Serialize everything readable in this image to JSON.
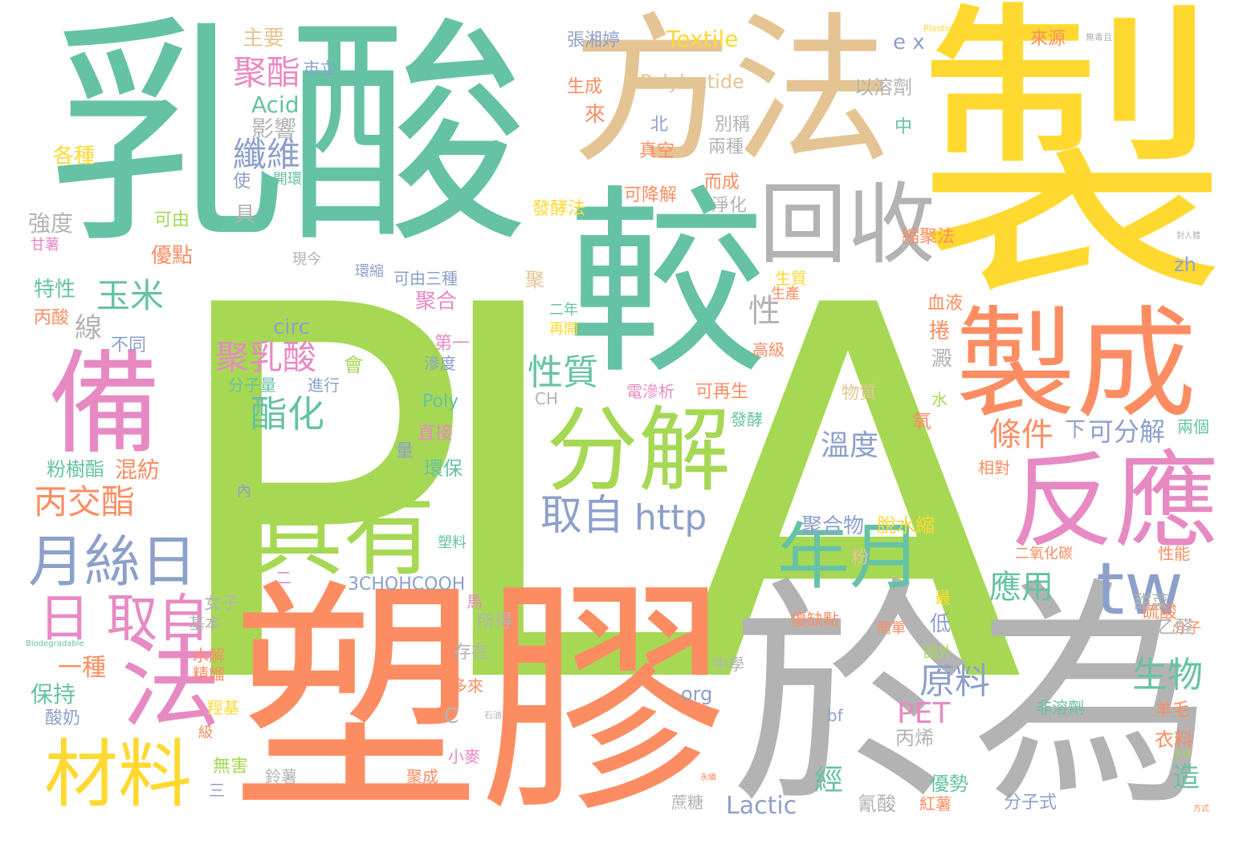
{
  "palette": {
    "green": "#a6d854",
    "teal": "#66c2a5",
    "yellow": "#ffd92f",
    "tan": "#e5c494",
    "orange": "#fc8d62",
    "gray": "#b3b3b3",
    "pink": "#e78ac3",
    "blue": "#8da0cb"
  },
  "words": [
    {
      "text": "PLA",
      "color": "green"
    },
    {
      "text": "乳酸",
      "color": "teal"
    },
    {
      "text": "製",
      "color": "yellow"
    },
    {
      "text": "方法",
      "color": "tan"
    },
    {
      "text": "較",
      "color": "teal"
    },
    {
      "text": "塑膠",
      "color": "orange"
    },
    {
      "text": "於為",
      "color": "gray"
    },
    {
      "text": "製成",
      "color": "orange"
    },
    {
      "text": "反應",
      "color": "pink"
    },
    {
      "text": "回收",
      "color": "gray"
    },
    {
      "text": "分解",
      "color": "green"
    },
    {
      "text": "具有",
      "color": "green"
    },
    {
      "text": "備",
      "color": "pink"
    },
    {
      "text": "法",
      "color": "pink"
    },
    {
      "text": "材料",
      "color": "yellow"
    },
    {
      "text": "年月",
      "color": "teal"
    },
    {
      "text": "tw",
      "color": "blue"
    },
    {
      "text": "月絲日",
      "color": "blue"
    },
    {
      "text": "日 取自",
      "color": "pink"
    },
    {
      "text": "取自",
      "color": "blue"
    },
    {
      "text": "http",
      "color": "blue"
    },
    {
      "text": "聚乳酸",
      "color": "pink"
    },
    {
      "text": "酯化",
      "color": "teal"
    },
    {
      "text": "性質",
      "color": "teal"
    },
    {
      "text": "原料",
      "color": "blue"
    },
    {
      "text": "生物",
      "color": "teal"
    },
    {
      "text": "丙交酯",
      "color": "orange"
    },
    {
      "text": "玉米",
      "color": "teal"
    },
    {
      "text": "聚酯",
      "color": "pink"
    },
    {
      "text": "纖維",
      "color": "blue"
    },
    {
      "text": "應用",
      "color": "teal"
    },
    {
      "text": "條件",
      "color": "orange"
    },
    {
      "text": "溫度",
      "color": "blue"
    },
    {
      "text": "可分解",
      "color": "blue"
    },
    {
      "text": "PET",
      "color": "pink"
    },
    {
      "text": "Textile",
      "color": "yellow"
    },
    {
      "text": "Polylactide",
      "color": "tan"
    },
    {
      "text": "Lactic",
      "color": "blue"
    },
    {
      "text": "Acid",
      "color": "teal"
    },
    {
      "text": "circ",
      "color": "blue"
    },
    {
      "text": "Poly",
      "color": "teal"
    },
    {
      "text": "3CHOHCOOH",
      "color": "blue"
    },
    {
      "text": "聚合物",
      "color": "blue"
    },
    {
      "text": "脫水縮",
      "color": "yellow"
    },
    {
      "text": "混紡",
      "color": "orange"
    },
    {
      "text": "粉樹酯",
      "color": "teal"
    },
    {
      "text": "一種",
      "color": "orange"
    },
    {
      "text": "保持",
      "color": "teal"
    },
    {
      "text": "酸奶",
      "color": "blue"
    },
    {
      "text": "特性",
      "color": "teal"
    },
    {
      "text": "丙酸",
      "color": "orange"
    },
    {
      "text": "強度",
      "color": "gray"
    },
    {
      "text": "各種",
      "color": "yellow"
    },
    {
      "text": "主要",
      "color": "tan"
    },
    {
      "text": "市立",
      "color": "blue"
    },
    {
      "text": "影響",
      "color": "gray"
    },
    {
      "text": "張湘婷",
      "color": "blue"
    },
    {
      "text": "來源",
      "color": "orange"
    },
    {
      "text": "以溶劑",
      "color": "gray"
    },
    {
      "text": "生成",
      "color": "orange"
    },
    {
      "text": "來",
      "color": "orange"
    },
    {
      "text": "北",
      "color": "blue"
    },
    {
      "text": "別稱",
      "color": "gray"
    },
    {
      "text": "兩種",
      "color": "gray"
    },
    {
      "text": "真空",
      "color": "orange"
    },
    {
      "text": "而成",
      "color": "orange"
    },
    {
      "text": "可降解",
      "color": "orange"
    },
    {
      "text": "淨化",
      "color": "gray"
    },
    {
      "text": "發酵法",
      "color": "yellow"
    },
    {
      "text": "縮聚法",
      "color": "orange"
    },
    {
      "text": "中",
      "color": "teal"
    },
    {
      "text": "zh",
      "color": "blue"
    },
    {
      "text": "優點",
      "color": "orange"
    },
    {
      "text": "可由",
      "color": "green"
    },
    {
      "text": "現今",
      "color": "gray"
    },
    {
      "text": "環縮",
      "color": "blue"
    },
    {
      "text": "可由三種",
      "color": "blue"
    },
    {
      "text": "聚合",
      "color": "pink"
    },
    {
      "text": "聚",
      "color": "tan"
    },
    {
      "text": "二年",
      "color": "teal"
    },
    {
      "text": "再開",
      "color": "yellow"
    },
    {
      "text": "第一",
      "color": "pink"
    },
    {
      "text": "滲度",
      "color": "blue"
    },
    {
      "text": "生質",
      "color": "yellow"
    },
    {
      "text": "生產",
      "color": "orange"
    },
    {
      "text": "高級",
      "color": "orange"
    },
    {
      "text": "血液",
      "color": "orange"
    },
    {
      "text": "捲",
      "color": "orange"
    },
    {
      "text": "澱",
      "color": "gray"
    },
    {
      "text": "電滲析",
      "color": "pink"
    },
    {
      "text": "可再生",
      "color": "orange"
    },
    {
      "text": "發酵",
      "color": "teal"
    },
    {
      "text": "氧",
      "color": "orange"
    },
    {
      "text": "水",
      "color": "green"
    },
    {
      "text": "兩個",
      "color": "teal"
    },
    {
      "text": "相對",
      "color": "orange"
    },
    {
      "text": "物質",
      "color": "tan"
    },
    {
      "text": "直接",
      "color": "pink"
    },
    {
      "text": "量",
      "color": "blue"
    },
    {
      "text": "環保",
      "color": "teal"
    },
    {
      "text": "分子量",
      "color": "teal"
    },
    {
      "text": "進行",
      "color": "blue"
    },
    {
      "text": "會",
      "color": "green"
    },
    {
      "text": "CH",
      "color": "gray"
    },
    {
      "text": "二氧化碳",
      "color": "orange"
    },
    {
      "text": "性能",
      "color": "orange"
    },
    {
      "text": "粉",
      "color": "tan"
    },
    {
      "text": "最",
      "color": "yellow"
    },
    {
      "text": "硫酸",
      "color": "orange"
    },
    {
      "text": "分子",
      "color": "orange"
    },
    {
      "text": "甜菜",
      "color": "gray"
    },
    {
      "text": "乙醛",
      "color": "gray"
    },
    {
      "text": "低",
      "color": "blue"
    },
    {
      "text": "高",
      "color": "green"
    },
    {
      "text": "優缺點",
      "color": "orange"
    },
    {
      "text": "簡單",
      "color": "orange"
    },
    {
      "text": "國外",
      "color": "green"
    },
    {
      "text": "中學",
      "color": "gray"
    },
    {
      "text": "非溶劑",
      "color": "teal"
    },
    {
      "text": "羊毛",
      "color": "orange"
    },
    {
      "text": "衣料",
      "color": "orange"
    },
    {
      "text": "造",
      "color": "teal"
    },
    {
      "text": "org",
      "color": "blue"
    },
    {
      "text": "bf",
      "color": "blue"
    },
    {
      "text": "丙烯",
      "color": "gray"
    },
    {
      "text": "優勢",
      "color": "teal"
    },
    {
      "text": "經",
      "color": "teal"
    },
    {
      "text": "氰酸",
      "color": "gray"
    },
    {
      "text": "紅薯",
      "color": "orange"
    },
    {
      "text": "分子式",
      "color": "blue"
    },
    {
      "text": "蔗糖",
      "color": "gray"
    },
    {
      "text": "所得",
      "color": "gray"
    },
    {
      "text": "存在",
      "color": "gray"
    },
    {
      "text": "馬",
      "color": "pink"
    },
    {
      "text": "多來",
      "color": "orange"
    },
    {
      "text": "小麥",
      "color": "pink"
    },
    {
      "text": "聚成",
      "color": "orange"
    },
    {
      "text": "C",
      "color": "gray"
    },
    {
      "text": "女子",
      "color": "gray"
    },
    {
      "text": "基本",
      "color": "gray"
    },
    {
      "text": "水解",
      "color": "orange"
    },
    {
      "text": "精餾",
      "color": "orange"
    },
    {
      "text": "羥基",
      "color": "yellow"
    },
    {
      "text": "級",
      "color": "orange"
    },
    {
      "text": "無害",
      "color": "green"
    },
    {
      "text": "鈴薯",
      "color": "gray"
    },
    {
      "text": "三",
      "color": "blue"
    },
    {
      "text": "二",
      "color": "pink"
    },
    {
      "text": "塑料",
      "color": "teal"
    },
    {
      "text": "內",
      "color": "blue"
    },
    {
      "text": "不同",
      "color": "blue"
    },
    {
      "text": "線",
      "color": "gray"
    },
    {
      "text": "性",
      "color": "gray"
    },
    {
      "text": "具",
      "color": "gray"
    },
    {
      "text": "使",
      "color": "blue"
    },
    {
      "text": "開環",
      "color": "teal"
    },
    {
      "text": "甘薯",
      "color": "pink"
    },
    {
      "text": "e x",
      "color": "blue"
    },
    {
      "text": "下",
      "color": "blue"
    },
    {
      "text": "Plastics",
      "color": "yellow"
    },
    {
      "text": "無毒且",
      "color": "gray"
    },
    {
      "text": "Biodegradable",
      "color": "teal"
    },
    {
      "text": "石油",
      "color": "gray"
    },
    {
      "text": "方式",
      "color": "orange"
    },
    {
      "text": "對人體",
      "color": "gray"
    },
    {
      "text": "天然",
      "color": "green"
    },
    {
      "text": "永續",
      "color": "orange"
    }
  ]
}
